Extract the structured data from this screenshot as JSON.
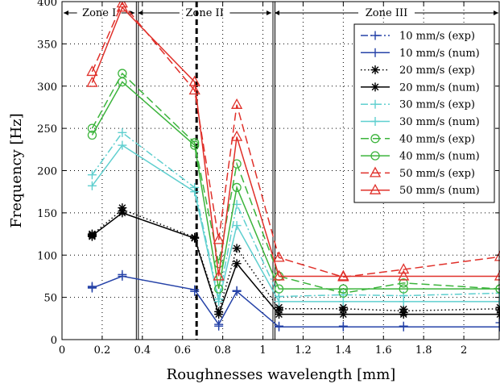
{
  "chart_data": {
    "type": "line",
    "title": "",
    "xlabel": "Roughnesses wavelength [mm]",
    "ylabel": "Frequency [Hz]",
    "xlim": [
      0,
      2.18
    ],
    "ylim": [
      0,
      400
    ],
    "xticks": [
      0,
      0.2,
      0.4,
      0.6,
      0.8,
      1,
      1.2,
      1.4,
      1.6,
      1.8,
      2
    ],
    "xtick_labels": [
      "0",
      "0.2",
      "0.4",
      "0.6",
      "0.8",
      "1",
      "1.2",
      "1.4",
      "1.6",
      "1.8",
      "2"
    ],
    "yticks": [
      0,
      50,
      100,
      150,
      200,
      250,
      300,
      350,
      400
    ],
    "ytick_labels": [
      "0",
      "50",
      "100",
      "150",
      "200",
      "250",
      "300",
      "350",
      "400"
    ],
    "grid": true,
    "legend_position": "top-right",
    "x": [
      0.15,
      0.3,
      0.66,
      0.78,
      0.87,
      1.08,
      1.4,
      1.7,
      2.18
    ],
    "zones": [
      {
        "label": "Zone I",
        "from": 0,
        "to": 0.37
      },
      {
        "label": "Zone II",
        "from": 0.37,
        "to": 1.05
      },
      {
        "label": "Zone III",
        "from": 1.05,
        "to": 2.18
      }
    ],
    "zone_boundaries": [
      0.37,
      0.38,
      1.05,
      1.06
    ],
    "dashed_marker_x": 0.67,
    "series": [
      {
        "name": "10 mm/s (exp)",
        "color": "#2643a8",
        "marker": "plus",
        "line": "dash-dot",
        "show_line": false,
        "values": [
          [
            63,
            62
          ],
          77,
          57,
          16,
          58,
          16,
          16,
          16,
          20
        ]
      },
      {
        "name": "10 mm/s (num)",
        "color": "#2643a8",
        "marker": "plus",
        "line": "solid",
        "show_line": true,
        "values": [
          61,
          75,
          59,
          18,
          57,
          15,
          15,
          15,
          15
        ]
      },
      {
        "name": "20 mm/s (exp)",
        "color": "#000000",
        "marker": "asterisk",
        "line": "dotted",
        "show_line": true,
        "values": [
          [
            125,
            123
          ],
          [
            156,
            152
          ],
          121,
          33,
          108,
          [
            38,
            35
          ],
          [
            38,
            35
          ],
          [
            36,
            32
          ],
          [
            38,
            35
          ]
        ]
      },
      {
        "name": "20 mm/s (num)",
        "color": "#000000",
        "marker": "asterisk",
        "line": "solid",
        "show_line": true,
        "values": [
          [
            124,
            122
          ],
          150,
          120,
          30,
          90,
          30,
          30,
          30,
          30
        ]
      },
      {
        "name": "30 mm/s (exp)",
        "color": "#5fcfcf",
        "marker": "plus",
        "line": "dash-dot",
        "show_line": true,
        "values": [
          195,
          245,
          180,
          48,
          160,
          51,
          53,
          52,
          55
        ]
      },
      {
        "name": "30 mm/s (num)",
        "color": "#5fcfcf",
        "marker": "plus",
        "line": "solid",
        "show_line": true,
        "values": [
          182,
          230,
          175,
          45,
          135,
          45,
          45,
          45,
          45
        ]
      },
      {
        "name": "40 mm/s (exp)",
        "color": "#3cb43c",
        "marker": "circle",
        "line": "dashed",
        "show_line": true,
        "values": [
          250,
          315,
          233,
          90,
          208,
          75,
          55,
          67,
          60
        ]
      },
      {
        "name": "40 mm/s (num)",
        "color": "#3cb43c",
        "marker": "circle",
        "line": "solid",
        "show_line": true,
        "values": [
          242,
          305,
          230,
          60,
          180,
          60,
          60,
          60,
          60
        ]
      },
      {
        "name": "50 mm/s (exp)",
        "color": "#e0302a",
        "marker": "triangle",
        "line": "dashed",
        "show_line": true,
        "values": [
          317,
          398,
          295,
          118,
          278,
          97,
          74,
          83,
          98
        ]
      },
      {
        "name": "50 mm/s (num)",
        "color": "#e0302a",
        "marker": "triangle",
        "line": "solid",
        "show_line": true,
        "values": [
          304,
          393,
          305,
          75,
          240,
          75,
          75,
          75,
          75
        ]
      }
    ]
  }
}
